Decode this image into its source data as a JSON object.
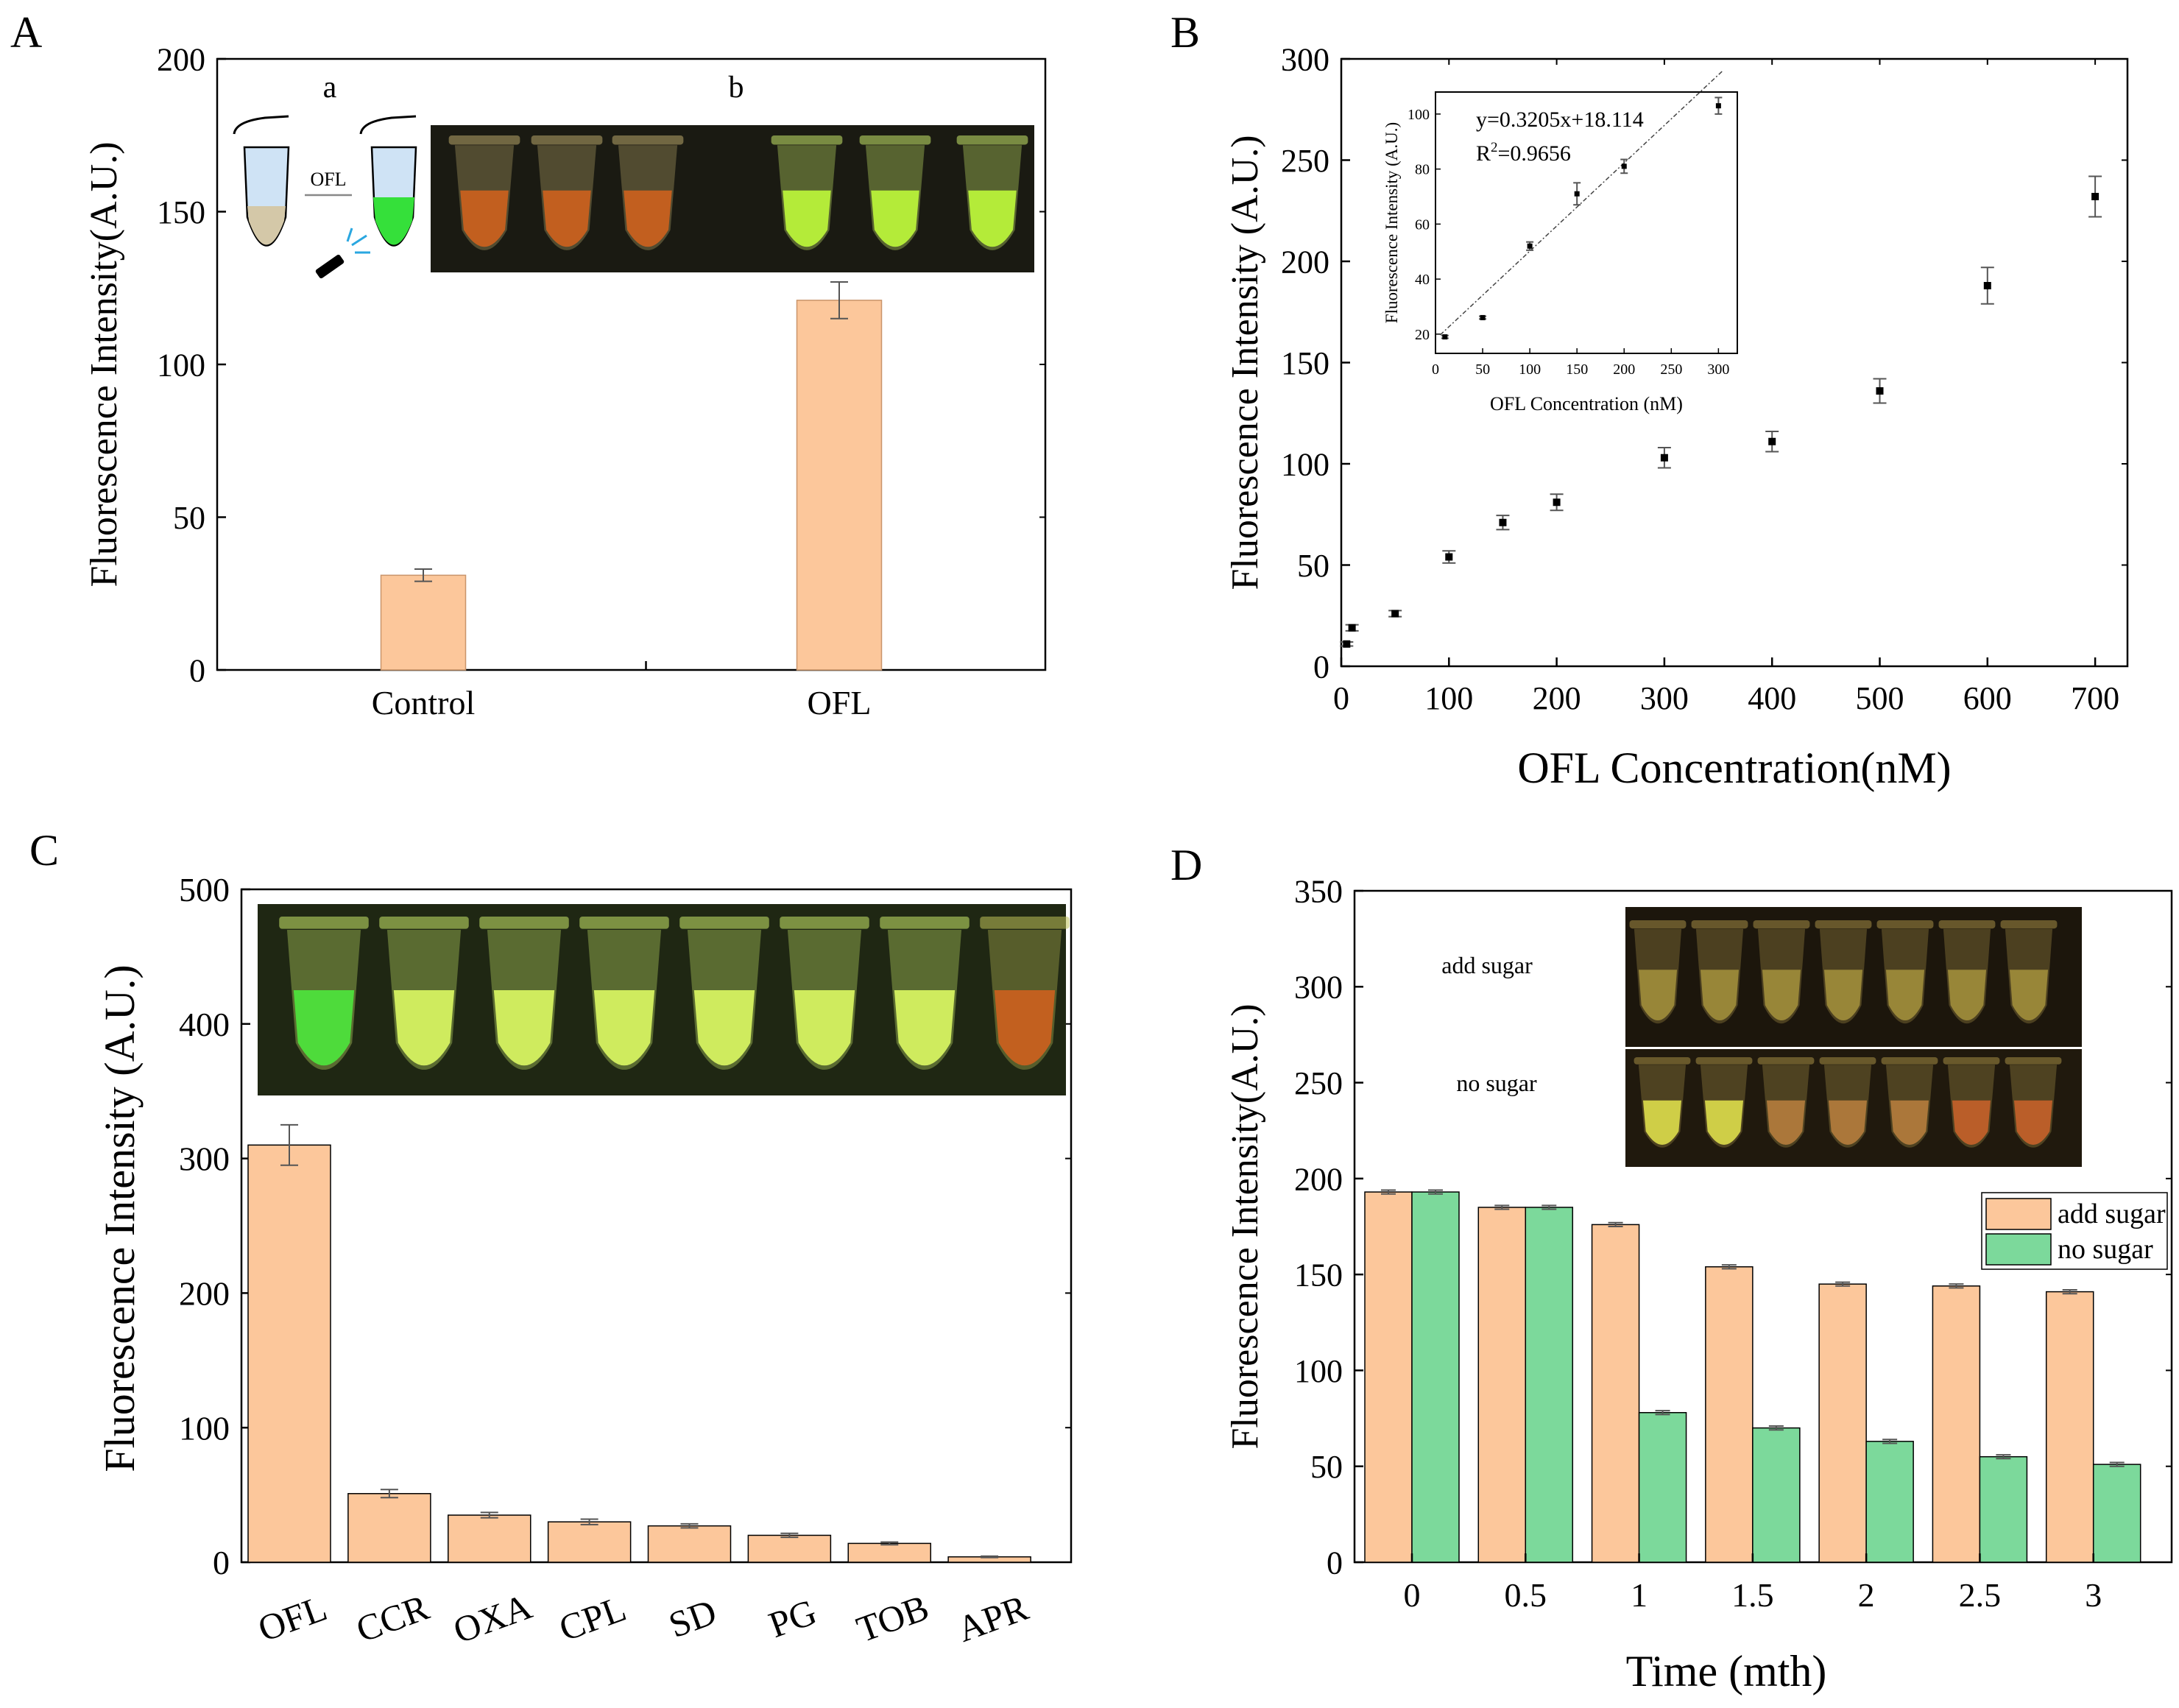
{
  "colors": {
    "bar_orange": "#fcc79b",
    "bar_orange_edge": "#c9956b",
    "bar_green": "#7cd99b",
    "bar_green_edge": "#3f8f5b",
    "photo_dark": "#1a1a12",
    "tube_green": "#b9f23a",
    "tube_orange": "#c8601f"
  },
  "chart_data": [
    {
      "panel": "A",
      "type": "bar",
      "title": "",
      "xlabel": "",
      "ylabel": "Fluorescence Intensity(A.U.)",
      "categories": [
        "Control",
        "OFL"
      ],
      "values": [
        31,
        121
      ],
      "error": [
        2,
        6
      ],
      "ylim": [
        0,
        200
      ],
      "yticks": [
        0,
        50,
        100,
        150,
        200
      ],
      "inset_labels": {
        "a": "a",
        "b": "b",
        "arrow_label": "OFL"
      },
      "inset_photo_tubes": [
        "orange",
        "orange",
        "orange",
        "green",
        "green",
        "green"
      ]
    },
    {
      "panel": "B",
      "type": "scatter",
      "title": "",
      "xlabel": "OFL Concentration(nM)",
      "ylabel": "Fluorescence Intensity (A.U.)",
      "xlim": [
        0,
        730
      ],
      "ylim": [
        0,
        300
      ],
      "xticks": [
        0,
        100,
        200,
        300,
        400,
        500,
        600,
        700
      ],
      "yticks": [
        0,
        50,
        100,
        150,
        200,
        250,
        300
      ],
      "x": [
        5,
        10,
        50,
        100,
        150,
        200,
        300,
        400,
        500,
        600,
        700
      ],
      "y": [
        11,
        19,
        26,
        54,
        71,
        81,
        103,
        111,
        136,
        188,
        232
      ],
      "error": [
        1,
        1.5,
        1.5,
        3,
        3.5,
        4,
        5,
        5,
        6,
        9,
        10
      ],
      "inset": {
        "type": "scatter",
        "xlabel": "OFL Concentration (nM)",
        "ylabel": "Fluorescence Intensity (A.U.)",
        "equation": "y=0.3205x+18.114",
        "r2_prefix": "R",
        "r2_sup": "2",
        "r2_value": "=0.9656",
        "xlim": [
          0,
          320
        ],
        "ylim": [
          13,
          108
        ],
        "xticks": [
          0,
          50,
          100,
          150,
          200,
          250,
          300
        ],
        "yticks": [
          20,
          40,
          60,
          80,
          100
        ],
        "x": [
          10,
          50,
          100,
          150,
          200,
          300
        ],
        "y": [
          19,
          26,
          52,
          71,
          81,
          103
        ],
        "error": [
          0.5,
          0.5,
          1.5,
          4,
          2.5,
          3
        ],
        "fit": {
          "slope": 0.3205,
          "intercept": 18.114
        }
      }
    },
    {
      "panel": "C",
      "type": "bar",
      "title": "",
      "xlabel": "",
      "ylabel": "Fluorescence Intensity (A.U.)",
      "categories": [
        "OFL",
        "CCR",
        "OXA",
        "CPL",
        "SD",
        "PG",
        "TOB",
        "APR"
      ],
      "values": [
        310,
        51,
        35,
        30,
        27,
        20,
        14,
        4
      ],
      "error": [
        15,
        3,
        2,
        2,
        1.5,
        1.5,
        1,
        0.5
      ],
      "ylim": [
        0,
        500
      ],
      "yticks": [
        0,
        100,
        200,
        300,
        400,
        500
      ],
      "inset_photo_tubes": [
        "brightgreen",
        "green",
        "green",
        "green",
        "green",
        "green",
        "green",
        "orange"
      ]
    },
    {
      "panel": "D",
      "type": "bar",
      "title": "",
      "xlabel": "Time (mth)",
      "ylabel": "Fluorescence Intensity(A.U.)",
      "categories": [
        "0",
        "0.5",
        "1",
        "1.5",
        "2",
        "2.5",
        "3"
      ],
      "series": [
        {
          "name": "add sugar",
          "values": [
            193,
            185,
            176,
            154,
            145,
            144,
            141
          ],
          "error": [
            1,
            1,
            1,
            1,
            1,
            1,
            1
          ]
        },
        {
          "name": "no sugar",
          "values": [
            193,
            185,
            78,
            70,
            63,
            55,
            51
          ],
          "error": [
            1,
            1,
            1,
            1,
            1,
            1,
            1
          ]
        }
      ],
      "ylim": [
        0,
        350
      ],
      "yticks": [
        0,
        50,
        100,
        150,
        200,
        250,
        300,
        350
      ],
      "legend": "right",
      "photo_labels": {
        "top": "add sugar",
        "bottom": "no sugar"
      }
    }
  ],
  "panels": {
    "a": "A",
    "b": "B",
    "c": "C",
    "d": "D"
  }
}
